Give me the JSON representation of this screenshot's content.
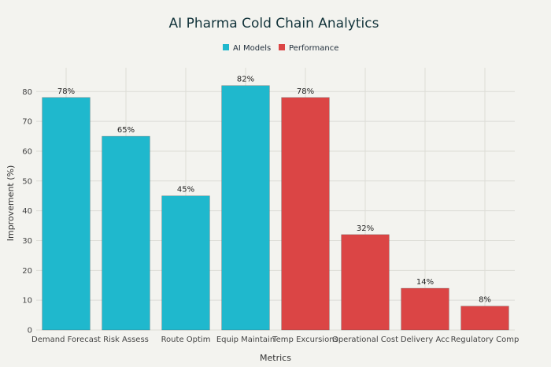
{
  "chart_data": {
    "type": "bar",
    "title": "AI Pharma Cold Chain Analytics",
    "xlabel": "Metrics",
    "ylabel": "Improvement (%)",
    "categories": [
      "Demand Forecast",
      "Risk Assess",
      "Route Optim",
      "Equip Maintain",
      "Temp Excursions",
      "Operational Cost",
      "Delivery Acc",
      "Regulatory Comp"
    ],
    "series": [
      {
        "name": "AI Models",
        "color": "#1fb8cd",
        "values": [
          78,
          65,
          45,
          82,
          null,
          null,
          null,
          null
        ]
      },
      {
        "name": "Performance",
        "color": "#db4545",
        "values": [
          null,
          null,
          null,
          null,
          78,
          32,
          14,
          8
        ]
      }
    ],
    "data_labels": [
      "78%",
      "65%",
      "45%",
      "82%",
      "78%",
      "32%",
      "14%",
      "8%"
    ],
    "ylim": [
      0,
      88
    ],
    "yticks": [
      0,
      10,
      20,
      30,
      40,
      50,
      60,
      70,
      80
    ],
    "grid": true,
    "legend_position": "top-center"
  }
}
